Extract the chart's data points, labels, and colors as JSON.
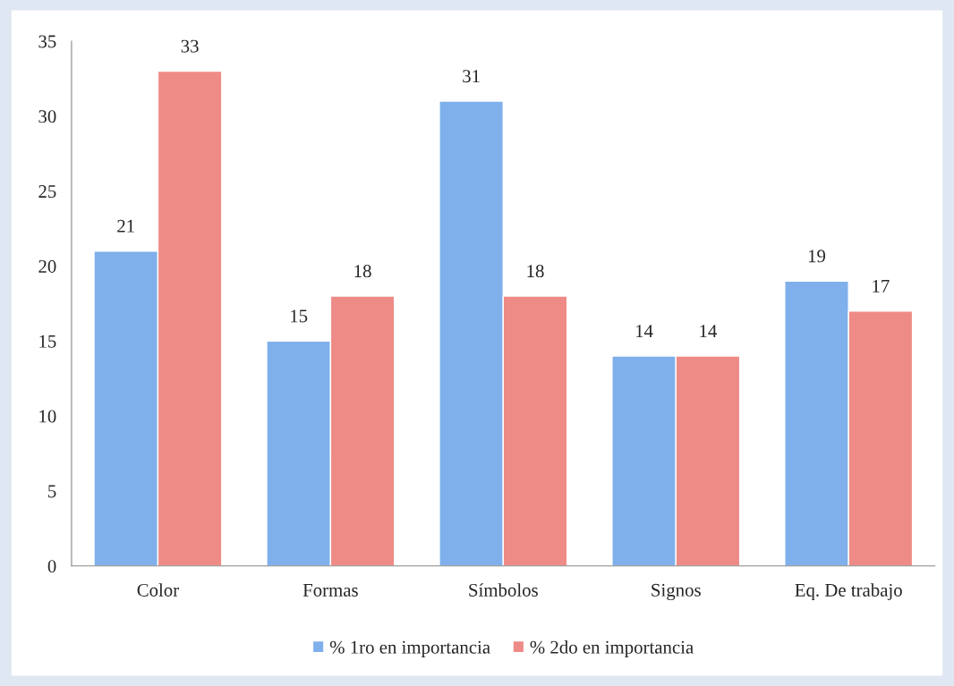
{
  "chart_data": {
    "type": "bar",
    "categories": [
      "Color",
      "Formas",
      "Símbolos",
      "Signos",
      "Eq. De trabajo"
    ],
    "series": [
      {
        "name": "% 1ro en importancia",
        "color": "#7fb0eb",
        "values": [
          21,
          15,
          31,
          14,
          19
        ]
      },
      {
        "name": "% 2do en importancia",
        "color": "#ee8b86",
        "values": [
          33,
          18,
          18,
          14,
          17
        ]
      }
    ],
    "ylim": [
      0,
      35
    ],
    "yticks": [
      0,
      5,
      10,
      15,
      20,
      25,
      30,
      35
    ],
    "grid": false,
    "legend": "bottom",
    "data_labels": true
  }
}
